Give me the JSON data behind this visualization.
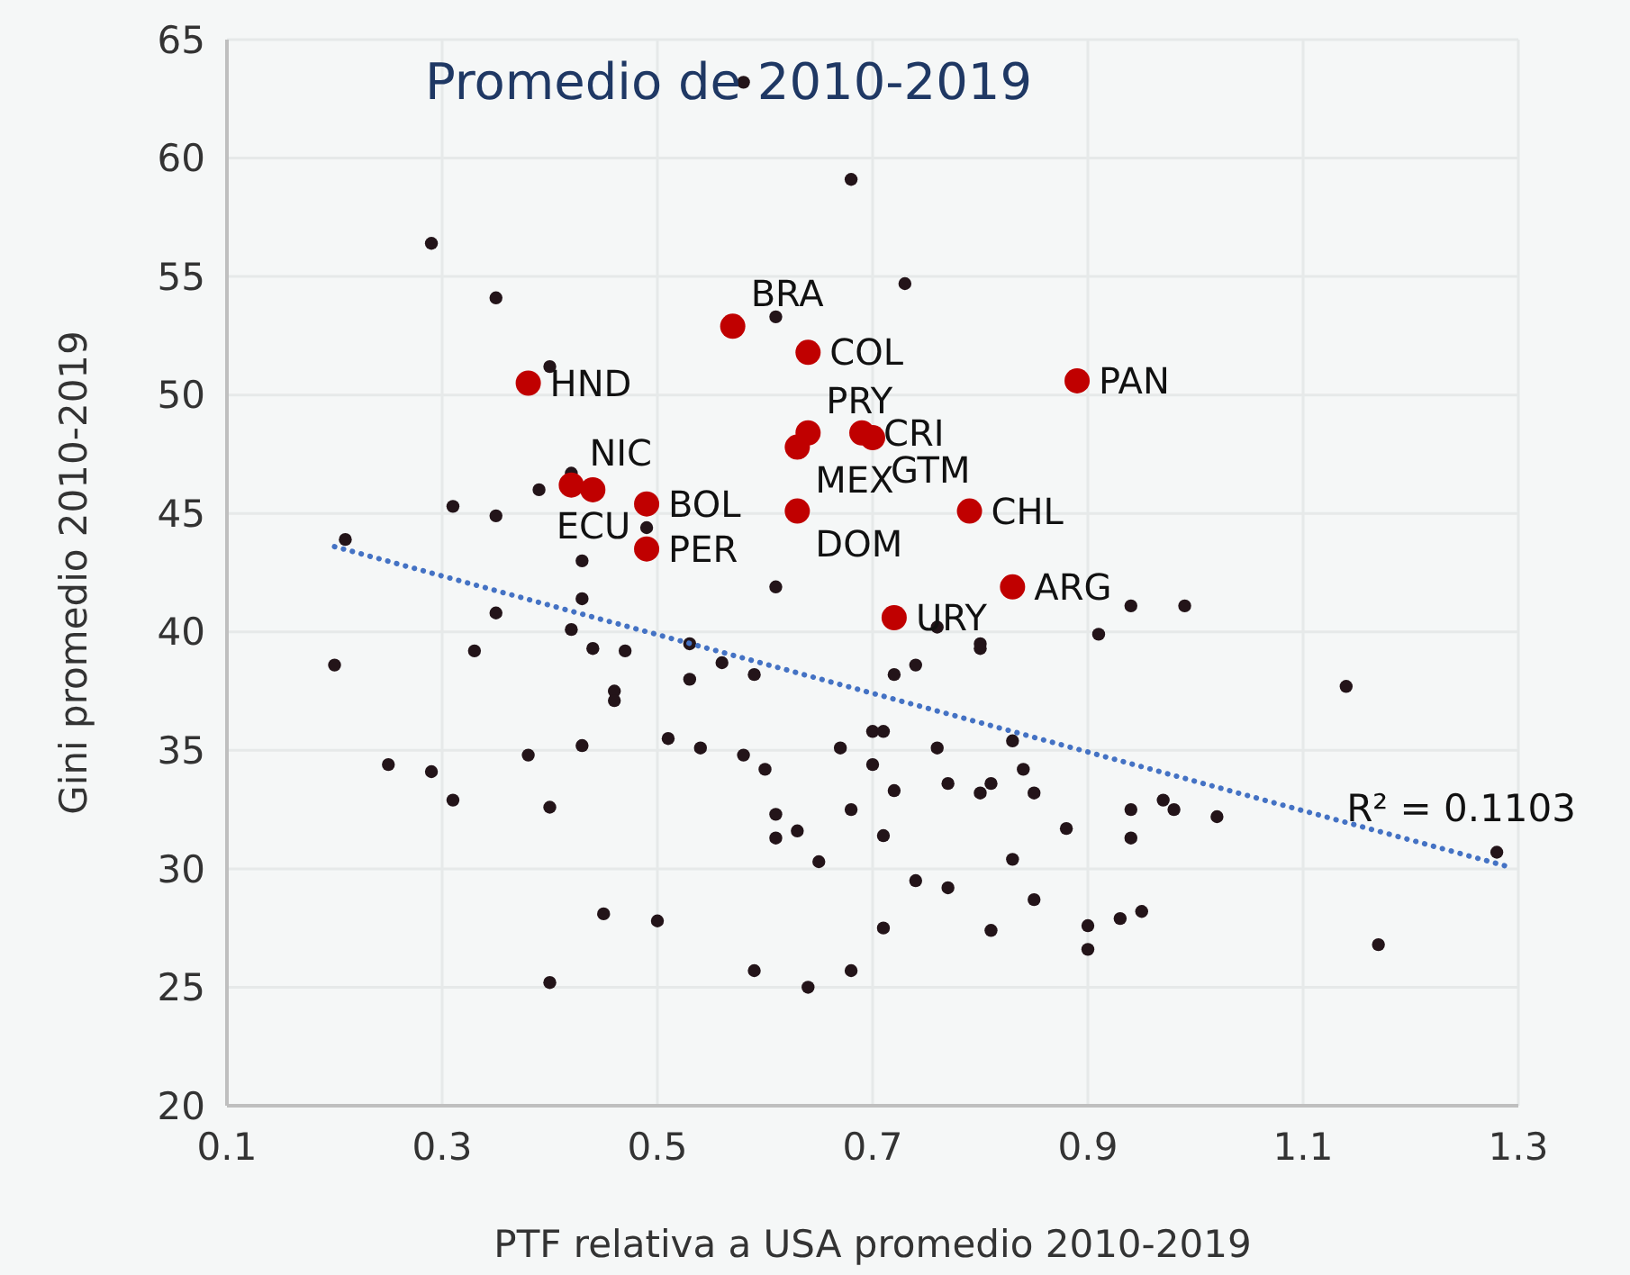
{
  "chart_data": {
    "type": "scatter",
    "title": "Promedio de 2010-2019",
    "xlabel": "PTF relativa a USA promedio 2010-2019",
    "ylabel": "Gini promedio 2010-2019",
    "xlim": [
      0.1,
      1.3
    ],
    "xticks": [
      0.1,
      0.3,
      0.5,
      0.7,
      0.9,
      1.1,
      1.3
    ],
    "ylim": [
      20,
      65
    ],
    "yticks": [
      20,
      25,
      30,
      35,
      40,
      45,
      50,
      55,
      60,
      65
    ],
    "grid": true,
    "marker": "circle",
    "annotations": [
      "R² = 0.1103"
    ],
    "series": [
      {
        "color": "#231419",
        "x": [
          0.58,
          0.68,
          0.29,
          0.35,
          0.73,
          0.61,
          0.4,
          0.42,
          0.39,
          0.31,
          0.35,
          0.49,
          0.21,
          0.43,
          0.61,
          0.43,
          0.35,
          0.42,
          0.53,
          0.94,
          0.99,
          0.91,
          0.76,
          0.8,
          0.2,
          0.33,
          0.44,
          0.47,
          0.53,
          0.56,
          0.59,
          0.46,
          0.46,
          0.72,
          0.51,
          0.54,
          0.58,
          0.6,
          0.43,
          0.38,
          0.25,
          0.29,
          0.31,
          0.4,
          0.61,
          0.63,
          0.61,
          0.65,
          0.67,
          0.7,
          0.71,
          0.7,
          0.72,
          0.68,
          0.71,
          0.45,
          0.5,
          0.71,
          0.59,
          0.64,
          0.68,
          0.4,
          0.8,
          0.74,
          1.14,
          0.83,
          0.76,
          0.84,
          0.77,
          0.81,
          0.8,
          0.85,
          0.94,
          0.97,
          0.98,
          1.02,
          0.88,
          0.94,
          0.83,
          1.28,
          0.74,
          0.77,
          0.85,
          0.81,
          0.9,
          0.93,
          0.95,
          0.9,
          1.17
        ],
        "values": [
          63.2,
          59.1,
          56.4,
          54.1,
          54.7,
          53.3,
          51.2,
          46.7,
          46.0,
          45.3,
          44.9,
          44.4,
          43.9,
          43.0,
          41.9,
          41.4,
          40.8,
          40.1,
          39.5,
          41.1,
          41.1,
          39.9,
          40.2,
          39.5,
          38.6,
          39.2,
          39.3,
          39.2,
          38.0,
          38.7,
          38.2,
          37.5,
          37.1,
          38.2,
          35.5,
          35.1,
          34.8,
          34.2,
          35.2,
          34.8,
          34.4,
          34.1,
          32.9,
          32.6,
          32.3,
          31.6,
          31.3,
          30.3,
          35.1,
          35.8,
          35.8,
          34.4,
          33.3,
          32.5,
          31.4,
          28.1,
          27.8,
          27.5,
          25.7,
          25.0,
          25.7,
          25.2,
          39.3,
          38.6,
          37.7,
          35.4,
          35.1,
          34.2,
          33.6,
          33.6,
          33.2,
          33.2,
          32.5,
          32.9,
          32.5,
          32.2,
          31.7,
          31.3,
          30.4,
          30.7,
          29.5,
          29.2,
          28.7,
          27.4,
          27.6,
          27.9,
          28.2,
          26.6,
          26.8
        ]
      },
      {
        "color": "#c00000",
        "x": [
          0.57,
          0.64,
          0.38,
          0.89,
          0.64,
          0.63,
          0.69,
          0.7,
          0.42,
          0.44,
          0.49,
          0.63,
          0.79,
          0.49,
          0.83,
          0.72
        ],
        "values": [
          52.9,
          51.8,
          50.5,
          50.6,
          48.4,
          47.8,
          48.4,
          48.2,
          46.2,
          46.0,
          45.4,
          45.1,
          45.1,
          43.5,
          41.9,
          40.6
        ],
        "value_labels": [
          "BRA",
          "COL",
          "HND",
          "PAN",
          "PRY",
          "MEX",
          "CRI",
          "GTM",
          "NIC",
          "ECU",
          "BOL",
          "DOM",
          "CHL",
          "PER",
          "ARG",
          "URY"
        ]
      },
      {
        "type": "line",
        "color": "#4472c4",
        "line_style": "dotted",
        "marker": "none",
        "x": [
          0.2,
          1.29
        ],
        "values": [
          43.6,
          30.1
        ]
      }
    ]
  }
}
